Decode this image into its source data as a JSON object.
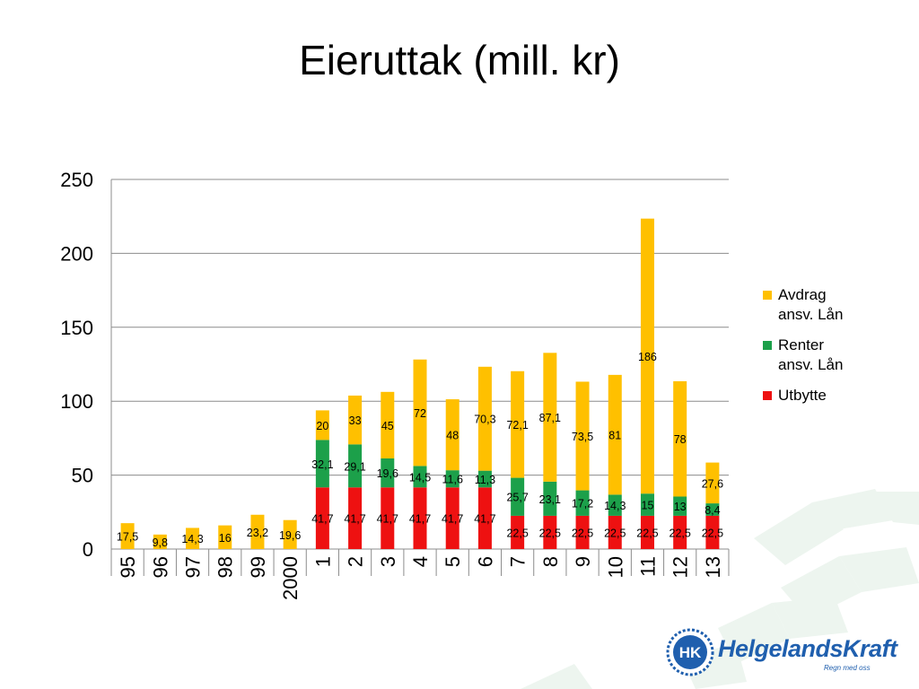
{
  "page": {
    "title": "Eieruttak (mill. kr)"
  },
  "chart_data": {
    "type": "bar",
    "stacked": true,
    "categories": [
      "95",
      "96",
      "97",
      "98",
      "99",
      "2000",
      "1",
      "2",
      "3",
      "4",
      "5",
      "6",
      "7",
      "8",
      "9",
      "10",
      "11",
      "12",
      "13"
    ],
    "series": [
      {
        "name": "Utbytte",
        "color": "#ee1111",
        "values": [
          0,
          0,
          0,
          0,
          0,
          0,
          41.7,
          41.7,
          41.7,
          41.7,
          41.7,
          41.7,
          22.5,
          22.5,
          22.5,
          22.5,
          22.5,
          22.5,
          22.5
        ],
        "labels": [
          "",
          "",
          "",
          "",
          "",
          "",
          "41,7",
          "41,7",
          "41,7",
          "41,7",
          "41,7",
          "41,7",
          "22,5",
          "22,5",
          "22,5",
          "22,5",
          "22,5",
          "22,5",
          "22,5"
        ]
      },
      {
        "name": "Renter ansv. Lån",
        "color": "#1ca04a",
        "values": [
          0,
          0,
          0,
          0,
          0,
          0,
          32.1,
          29.1,
          19.6,
          14.5,
          11.6,
          11.3,
          25.7,
          23.1,
          17.2,
          14.3,
          15,
          13,
          8.4
        ],
        "labels": [
          "",
          "",
          "",
          "",
          "",
          "",
          "32,1",
          "29,1",
          "19,6",
          "14,5",
          "11,6",
          "11,3",
          "25,7",
          "23,1",
          "17,2",
          "14,3",
          "15",
          "13",
          "8,4"
        ]
      },
      {
        "name": "Avdrag ansv. Lån",
        "color": "#ffc000",
        "values": [
          17.5,
          9.8,
          14.3,
          16,
          23.2,
          19.6,
          20,
          33,
          45,
          72,
          48,
          70.3,
          72.1,
          87.1,
          73.5,
          81,
          186,
          78,
          27.6
        ],
        "labels": [
          "17,5",
          "9,8",
          "14,3",
          "16",
          "23,2",
          "19,6",
          "20",
          "33",
          "45",
          "72",
          "48",
          "70,3",
          "72,1",
          "87,1",
          "73,5",
          "81",
          "186",
          "78",
          "27,6"
        ]
      }
    ],
    "legend": [
      {
        "line1": "Avdrag",
        "line2": "ansv. Lån",
        "color": "#ffc000"
      },
      {
        "line1": "Renter",
        "line2": "ansv. Lån",
        "color": "#1ca04a"
      },
      {
        "line1": "Utbytte",
        "line2": "",
        "color": "#ee1111"
      }
    ],
    "legend_position": "right",
    "ylim": [
      0,
      250
    ],
    "yticks": [
      "0",
      "50",
      "100",
      "150",
      "200",
      "250"
    ],
    "grid": true,
    "xlabel": "",
    "ylabel": ""
  },
  "logo": {
    "name": "HelgelandsKraft",
    "tagline": "Regn med oss",
    "monogram": "HK"
  }
}
